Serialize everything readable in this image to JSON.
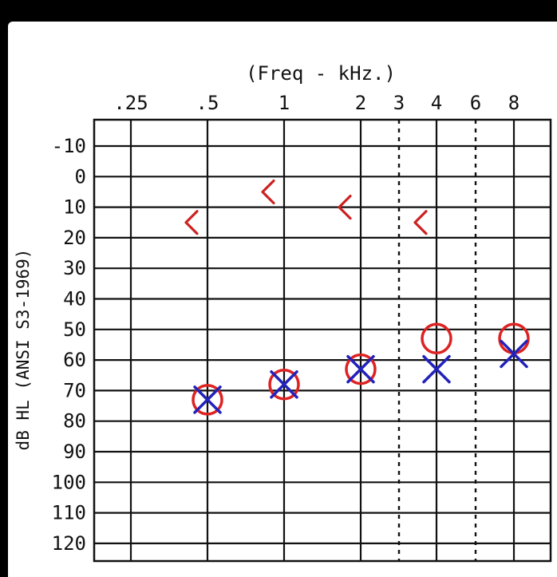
{
  "chart_data": {
    "type": "scatter",
    "title": "(Freq - kHz.)",
    "xlabel": "(Freq - kHz.)",
    "ylabel": "dB HL (ANSI S3-1969)",
    "x_scale": "log",
    "x_ticks": [
      {
        "label": ".25",
        "value": 0.25
      },
      {
        "label": ".5",
        "value": 0.5
      },
      {
        "label": "1",
        "value": 1
      },
      {
        "label": "2",
        "value": 2
      },
      {
        "label": "3",
        "value": 3
      },
      {
        "label": "4",
        "value": 4
      },
      {
        "label": "6",
        "value": 6
      },
      {
        "label": "8",
        "value": 8
      }
    ],
    "dashed_x": [
      3,
      6
    ],
    "y_ticks": [
      {
        "label": "-10",
        "value": -10
      },
      {
        "label": "0",
        "value": 0
      },
      {
        "label": "10",
        "value": 10
      },
      {
        "label": "20",
        "value": 20
      },
      {
        "label": "30",
        "value": 30
      },
      {
        "label": "40",
        "value": 40
      },
      {
        "label": "50",
        "value": 50
      },
      {
        "label": "60",
        "value": 60
      },
      {
        "label": "70",
        "value": 70
      },
      {
        "label": "80",
        "value": 80
      },
      {
        "label": "90",
        "value": 90
      },
      {
        "label": "100",
        "value": 100
      },
      {
        "label": "110",
        "value": 110
      },
      {
        "label": "120",
        "value": 120
      }
    ],
    "ylim": [
      -10,
      120
    ],
    "y_inverted": true,
    "grid": true,
    "series": [
      {
        "marker": "circle",
        "color": "#dd2222",
        "points": [
          {
            "x": 0.5,
            "y": 73
          },
          {
            "x": 1,
            "y": 68
          },
          {
            "x": 2,
            "y": 63
          },
          {
            "x": 4,
            "y": 53
          },
          {
            "x": 8,
            "y": 53
          }
        ]
      },
      {
        "marker": "x",
        "color": "#2222bb",
        "points": [
          {
            "x": 0.5,
            "y": 73
          },
          {
            "x": 1,
            "y": 68
          },
          {
            "x": 2,
            "y": 63
          },
          {
            "x": 4,
            "y": 63
          },
          {
            "x": 8,
            "y": 58
          }
        ]
      },
      {
        "marker": "bracket-left",
        "color": "#cc2222",
        "points": [
          {
            "x": 0.5,
            "y": 15
          },
          {
            "x": 1,
            "y": 5
          },
          {
            "x": 2,
            "y": 10
          },
          {
            "x": 4,
            "y": 15
          }
        ]
      }
    ]
  }
}
